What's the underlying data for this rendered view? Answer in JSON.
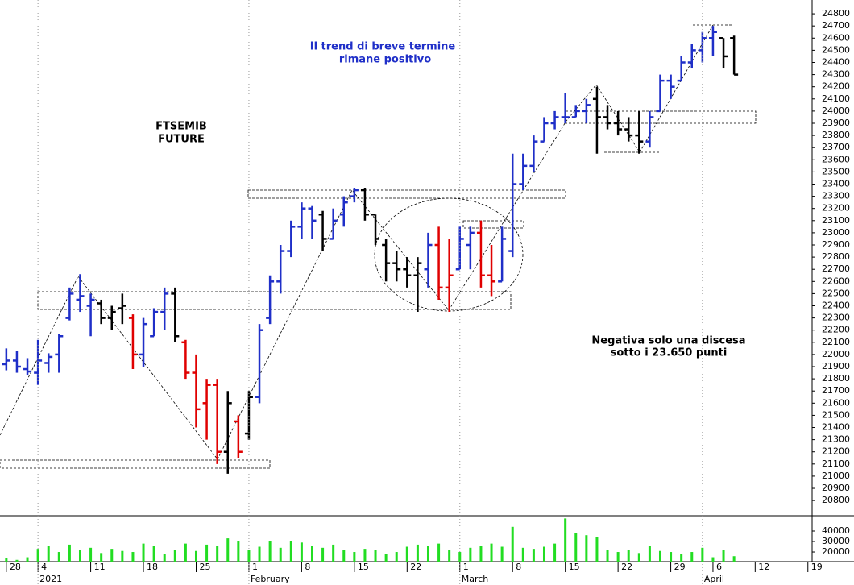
{
  "chart_data": [
    {
      "type": "ohlc",
      "annotations": [
        [
          "FTSEMIB",
          "FUTURE"
        ],
        [
          "Il trend di breve termine",
          "rimane positivo"
        ],
        [
          "Negativa solo una discesa",
          "sotto i 23.650 punti"
        ]
      ],
      "x": [
        -3,
        -2,
        -1,
        0,
        1,
        2,
        3,
        4,
        5,
        6,
        7,
        8,
        9,
        10,
        11,
        12,
        13,
        14,
        15,
        16,
        17,
        18,
        19,
        20,
        21,
        22,
        23,
        24,
        25,
        26,
        27,
        28,
        29,
        30,
        31,
        32,
        33,
        34,
        35,
        36,
        37,
        38,
        39,
        40,
        41,
        42,
        43,
        44,
        45,
        46,
        47,
        48,
        49,
        50,
        51,
        52,
        53,
        54,
        55,
        56,
        57,
        58,
        59,
        60,
        61,
        62,
        63,
        64,
        65,
        66
      ],
      "open": [
        21920,
        21950,
        21880,
        21850,
        21930,
        22000,
        22300,
        22450,
        22400,
        22420,
        22300,
        22380,
        22300,
        22000,
        22150,
        22350,
        22500,
        22100,
        21850,
        21600,
        21750,
        21200,
        21450,
        21350,
        21650,
        22300,
        22600,
        22850,
        23050,
        23200,
        23150,
        22950,
        23150,
        23300,
        23350,
        23150,
        22900,
        22750,
        22700,
        22650,
        22700,
        22900,
        22550,
        22700,
        22900,
        23000,
        22650,
        22600,
        22850,
        23400,
        23550,
        23750,
        23900,
        23950,
        23950,
        24000,
        24100,
        23950,
        23900,
        23850,
        23800,
        23750,
        24000,
        24250,
        24250,
        24400,
        24500,
        24600,
        24600,
        24600
      ],
      "high": [
        22050,
        22030,
        21970,
        22120,
        22010,
        22170,
        22550,
        22660,
        22500,
        22450,
        22400,
        22500,
        22330,
        22300,
        22380,
        22550,
        22550,
        22120,
        22000,
        21800,
        21800,
        21700,
        21500,
        21700,
        22250,
        22650,
        22900,
        23100,
        23250,
        23220,
        23180,
        23200,
        23300,
        23370,
        23370,
        23150,
        22950,
        22850,
        22800,
        22800,
        23000,
        23050,
        22950,
        23050,
        23050,
        23100,
        22900,
        23050,
        23650,
        23650,
        23800,
        23950,
        24000,
        24150,
        24050,
        24100,
        24200,
        24050,
        24000,
        23950,
        24000,
        24000,
        24300,
        24300,
        24450,
        24550,
        24650,
        24700,
        24600,
        24620
      ],
      "low": [
        21870,
        21850,
        21830,
        21750,
        21850,
        21850,
        22280,
        22350,
        22150,
        22250,
        22200,
        22250,
        21880,
        21900,
        22150,
        22200,
        22100,
        21800,
        21400,
        21300,
        21100,
        21020,
        21150,
        21300,
        21600,
        22250,
        22500,
        22800,
        22950,
        22950,
        22850,
        22950,
        23050,
        23250,
        23100,
        22900,
        22600,
        22600,
        22550,
        22350,
        22550,
        22450,
        22350,
        22700,
        22700,
        22550,
        22480,
        22600,
        22800,
        23350,
        23500,
        23750,
        23850,
        23900,
        23950,
        23900,
        23650,
        23850,
        23800,
        23750,
        23650,
        23700,
        24000,
        24100,
        24250,
        24350,
        24400,
        24450,
        24350,
        24300
      ],
      "close": [
        21950,
        21900,
        21860,
        21950,
        21980,
        22150,
        22500,
        22480,
        22450,
        22300,
        22350,
        22400,
        22000,
        22250,
        22350,
        22500,
        22150,
        21850,
        21550,
        21750,
        21200,
        21600,
        21200,
        21650,
        22200,
        22600,
        22850,
        23050,
        23200,
        23100,
        22950,
        23100,
        23250,
        23350,
        23150,
        22950,
        22750,
        22700,
        22650,
        22750,
        22900,
        22550,
        22650,
        22950,
        23000,
        22650,
        22600,
        22950,
        23400,
        23550,
        23750,
        23900,
        23950,
        23950,
        24000,
        24050,
        23950,
        23900,
        23850,
        23800,
        23750,
        23950,
        24250,
        24200,
        24400,
        24500,
        24600,
        24650,
        24450,
        24300
      ],
      "colors": [
        "#1f2fc8",
        "#1f2fc8",
        "#1f2fc8",
        "#1f2fc8",
        "#1f2fc8",
        "#1f2fc8",
        "#1f2fc8",
        "#1f2fc8",
        "#1f2fc8",
        "#000000",
        "#000000",
        "#000000",
        "#e00000",
        "#1f2fc8",
        "#1f2fc8",
        "#1f2fc8",
        "#000000",
        "#e00000",
        "#e00000",
        "#e00000",
        "#e00000",
        "#000000",
        "#e00000",
        "#000000",
        "#1f2fc8",
        "#1f2fc8",
        "#1f2fc8",
        "#1f2fc8",
        "#1f2fc8",
        "#1f2fc8",
        "#000000",
        "#1f2fc8",
        "#1f2fc8",
        "#1f2fc8",
        "#000000",
        "#000000",
        "#000000",
        "#000000",
        "#000000",
        "#000000",
        "#1f2fc8",
        "#e00000",
        "#e00000",
        "#1f2fc8",
        "#1f2fc8",
        "#e00000",
        "#e00000",
        "#1f2fc8",
        "#1f2fc8",
        "#1f2fc8",
        "#1f2fc8",
        "#1f2fc8",
        "#1f2fc8",
        "#1f2fc8",
        "#1f2fc8",
        "#1f2fc8",
        "#000000",
        "#000000",
        "#000000",
        "#000000",
        "#000000",
        "#1f2fc8",
        "#1f2fc8",
        "#1f2fc8",
        "#1f2fc8",
        "#1f2fc8",
        "#1f2fc8",
        "#1f2fc8",
        "#000000",
        "#000000"
      ],
      "xlim": [
        -3.6,
        73.4
      ],
      "ylim": [
        20675,
        24880
      ],
      "yticks": [
        20800,
        20900,
        21000,
        21100,
        21200,
        21300,
        21400,
        21500,
        21600,
        21700,
        21800,
        21900,
        22000,
        22100,
        22200,
        22300,
        22400,
        22500,
        22600,
        22700,
        22800,
        22900,
        23000,
        23100,
        23200,
        23300,
        23400,
        23500,
        23600,
        23700,
        23800,
        23900,
        24000,
        24100,
        24200,
        24300,
        24400,
        24500,
        24600,
        24700,
        24800
      ]
    },
    {
      "type": "bar",
      "color": "#22dd22",
      "x": [
        -3,
        -2,
        -1,
        0,
        1,
        2,
        3,
        4,
        5,
        6,
        7,
        8,
        9,
        10,
        11,
        12,
        13,
        14,
        15,
        16,
        17,
        18,
        19,
        20,
        21,
        22,
        23,
        24,
        25,
        26,
        27,
        28,
        29,
        30,
        31,
        32,
        33,
        34,
        35,
        36,
        37,
        38,
        39,
        40,
        41,
        42,
        43,
        44,
        45,
        46,
        47,
        48,
        49,
        50,
        51,
        52,
        53,
        54,
        55,
        56,
        57,
        58,
        59,
        60,
        61,
        62,
        63,
        64,
        65,
        66
      ],
      "values": [
        14000,
        12500,
        15000,
        23000,
        26000,
        20000,
        27000,
        22000,
        24000,
        19000,
        23000,
        21000,
        20000,
        28000,
        26000,
        18000,
        22000,
        28000,
        21000,
        27000,
        26000,
        33000,
        30000,
        22000,
        25000,
        30000,
        24000,
        30000,
        29000,
        26000,
        24000,
        27000,
        22000,
        20000,
        23000,
        22000,
        18000,
        20000,
        25000,
        27000,
        26000,
        28000,
        22000,
        20000,
        24000,
        26000,
        28000,
        25000,
        44000,
        24000,
        23000,
        25000,
        28000,
        52000,
        38000,
        36000,
        34000,
        22000,
        20000,
        22000,
        19000,
        26000,
        21000,
        20000,
        18000,
        20000,
        24000,
        15000,
        22000,
        16000
      ],
      "xlim": [
        -3.6,
        73.4
      ],
      "ylim": [
        10800,
        54600
      ],
      "yticks": [
        20000,
        30000,
        40000
      ],
      "xticks": [
        {
          "value": -3,
          "label": "28"
        },
        {
          "value": 0,
          "label": "4"
        },
        {
          "value": 5,
          "label": "11"
        },
        {
          "value": 10,
          "label": "18"
        },
        {
          "value": 15,
          "label": "25"
        },
        {
          "value": 20,
          "label": "1"
        },
        {
          "value": 25,
          "label": "8"
        },
        {
          "value": 30,
          "label": "15"
        },
        {
          "value": 35,
          "label": "22"
        },
        {
          "value": 40,
          "label": "1"
        },
        {
          "value": 45,
          "label": "8"
        },
        {
          "value": 50,
          "label": "15"
        },
        {
          "value": 55,
          "label": "22"
        },
        {
          "value": 60,
          "label": "29"
        },
        {
          "value": 64,
          "label": "6"
        },
        {
          "value": 68,
          "label": "12"
        },
        {
          "value": 73,
          "label": "19"
        }
      ],
      "months": [
        {
          "value": 0,
          "label": "2021"
        },
        {
          "value": 20,
          "label": "February"
        },
        {
          "value": 40,
          "label": "March"
        },
        {
          "value": 63,
          "label": "April"
        }
      ]
    }
  ]
}
